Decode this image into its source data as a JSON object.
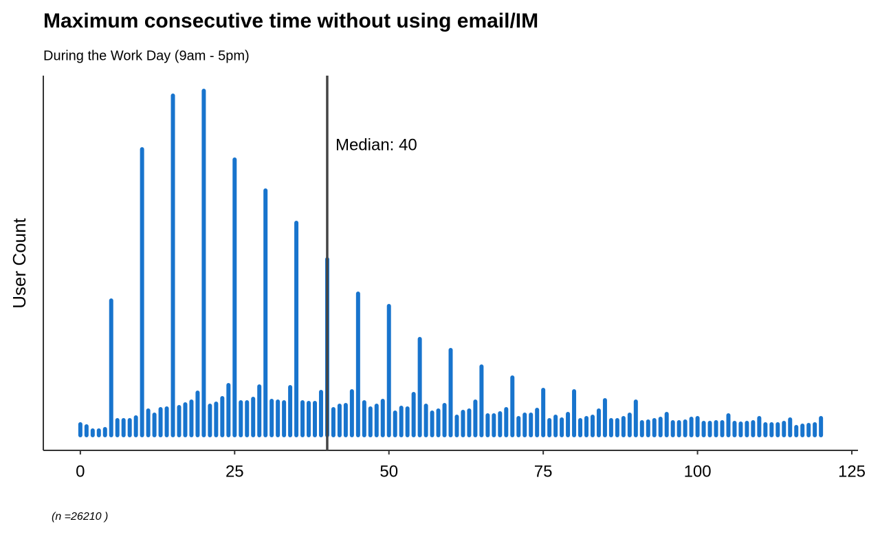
{
  "chart_data": {
    "type": "bar",
    "title": "Maximum consecutive time without using email/IM",
    "subtitle": "During the Work Day (9am - 5pm)",
    "y_label": "User Count",
    "caption": "(n =26210 )",
    "median": {
      "value": 40,
      "label": "Median: 40"
    },
    "color": "#1874cd",
    "x": [
      0,
      1,
      2,
      3,
      4,
      5,
      6,
      7,
      8,
      9,
      10,
      11,
      12,
      13,
      14,
      15,
      16,
      17,
      18,
      19,
      20,
      21,
      22,
      23,
      24,
      25,
      26,
      27,
      28,
      29,
      30,
      31,
      32,
      33,
      34,
      35,
      36,
      37,
      38,
      39,
      40,
      41,
      42,
      43,
      44,
      45,
      46,
      47,
      48,
      49,
      50,
      51,
      52,
      53,
      54,
      55,
      56,
      57,
      58,
      59,
      60,
      61,
      62,
      63,
      64,
      65,
      66,
      67,
      68,
      69,
      70,
      71,
      72,
      73,
      74,
      75,
      76,
      77,
      78,
      79,
      80,
      81,
      82,
      83,
      84,
      85,
      86,
      87,
      88,
      89,
      90,
      91,
      92,
      93,
      94,
      95,
      96,
      97,
      98,
      99,
      100,
      101,
      102,
      103,
      104,
      105,
      106,
      107,
      108,
      109,
      110,
      111,
      112,
      113,
      114,
      115,
      116,
      117,
      118,
      119,
      120
    ],
    "values": [
      16,
      13,
      7,
      7,
      9,
      196,
      22,
      22,
      22,
      26,
      416,
      36,
      30,
      38,
      39,
      494,
      41,
      45,
      49,
      62,
      501,
      43,
      46,
      54,
      73,
      401,
      48,
      48,
      53,
      71,
      356,
      50,
      49,
      48,
      70,
      309,
      48,
      47,
      47,
      63,
      256,
      38,
      43,
      44,
      64,
      206,
      48,
      39,
      43,
      50,
      188,
      33,
      40,
      39,
      60,
      140,
      43,
      33,
      36,
      44,
      124,
      27,
      34,
      36,
      49,
      100,
      29,
      29,
      32,
      38,
      84,
      25,
      30,
      30,
      37,
      66,
      22,
      27,
      23,
      31,
      64,
      22,
      25,
      27,
      36,
      51,
      22,
      22,
      25,
      30,
      49,
      19,
      20,
      22,
      24,
      31,
      19,
      19,
      20,
      24,
      25,
      18,
      18,
      19,
      19,
      29,
      18,
      17,
      18,
      19,
      25,
      16,
      16,
      16,
      18,
      23,
      12,
      14,
      15,
      16,
      25
    ],
    "xlim": [
      -6,
      126
    ],
    "xticks": [
      0,
      25,
      50,
      75,
      100,
      125
    ],
    "ylim": [
      -22,
      523
    ]
  }
}
